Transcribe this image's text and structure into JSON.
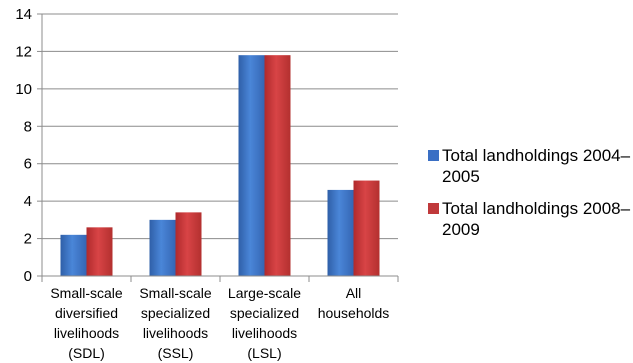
{
  "chart_data": {
    "type": "bar",
    "title": "",
    "xlabel": "",
    "ylabel": "",
    "ylim": [
      0,
      14
    ],
    "yticks": [
      0,
      2,
      4,
      6,
      8,
      10,
      12,
      14
    ],
    "grid": true,
    "legend_position": "right",
    "categories": [
      [
        "Small-scale",
        "diversified",
        "livelihoods",
        "(SDL)"
      ],
      [
        "Small-scale",
        "specialized",
        "livelihoods",
        "(SSL)"
      ],
      [
        "Large-scale",
        "specialized",
        "livelihoods",
        "(LSL)"
      ],
      [
        "All",
        "households"
      ]
    ],
    "series": [
      {
        "name": [
          "Total landholdings 2004–",
          "2005"
        ],
        "color": "#3a6fc4",
        "values": [
          2.2,
          3.0,
          11.8,
          4.6
        ]
      },
      {
        "name": [
          "Total landholdings 2008–",
          "2009"
        ],
        "color": "#c0393b",
        "values": [
          2.6,
          3.4,
          11.8,
          5.1
        ]
      }
    ]
  }
}
